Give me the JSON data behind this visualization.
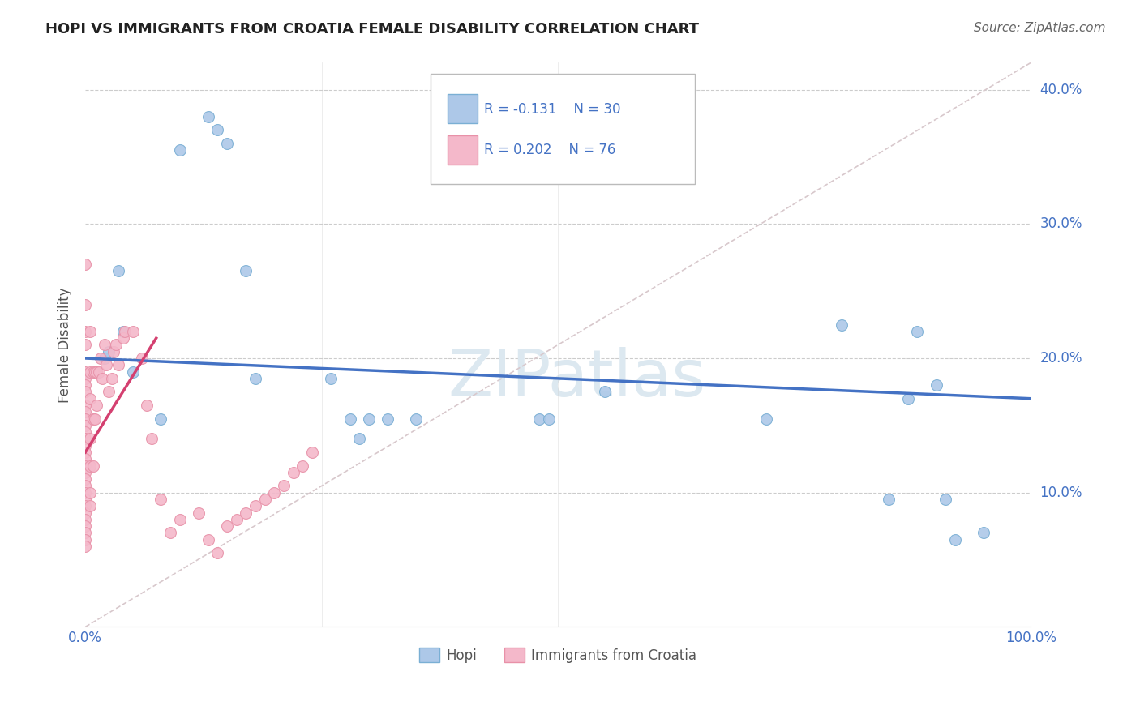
{
  "title": "HOPI VS IMMIGRANTS FROM CROATIA FEMALE DISABILITY CORRELATION CHART",
  "source": "Source: ZipAtlas.com",
  "ylabel": "Female Disability",
  "watermark": "ZIPatlas",
  "hopi_R": -0.131,
  "hopi_N": 30,
  "croatia_R": 0.202,
  "croatia_N": 76,
  "hopi_color": "#adc8e8",
  "hopi_edge_color": "#7aafd4",
  "hopi_line_color": "#4472c4",
  "croatia_color": "#f4b8ca",
  "croatia_edge_color": "#e891a8",
  "croatia_line_color": "#d44070",
  "ref_line_color": "#d8c8cc",
  "xlim": [
    0.0,
    1.0
  ],
  "ylim": [
    0.0,
    0.42
  ],
  "x_ticks": [
    0.0,
    0.25,
    0.5,
    0.75,
    1.0
  ],
  "x_tick_labels": [
    "0.0%",
    "",
    "",
    "",
    "100.0%"
  ],
  "y_ticks": [
    0.1,
    0.2,
    0.3,
    0.4
  ],
  "y_tick_labels": [
    "10.0%",
    "20.0%",
    "30.0%",
    "40.0%"
  ],
  "hopi_x": [
    0.1,
    0.13,
    0.14,
    0.15,
    0.55,
    0.72,
    0.8,
    0.85,
    0.87,
    0.88,
    0.9,
    0.91,
    0.92,
    0.95,
    0.17,
    0.18,
    0.26,
    0.28,
    0.29,
    0.3,
    0.32,
    0.35,
    0.48,
    0.49,
    0.02,
    0.025,
    0.035,
    0.04,
    0.05,
    0.08
  ],
  "hopi_y": [
    0.355,
    0.38,
    0.37,
    0.36,
    0.175,
    0.155,
    0.225,
    0.095,
    0.17,
    0.22,
    0.18,
    0.095,
    0.065,
    0.07,
    0.265,
    0.185,
    0.185,
    0.155,
    0.14,
    0.155,
    0.155,
    0.155,
    0.155,
    0.155,
    0.2,
    0.205,
    0.265,
    0.22,
    0.19,
    0.155
  ],
  "croatia_x": [
    0.0,
    0.0,
    0.0,
    0.0,
    0.0,
    0.0,
    0.0,
    0.0,
    0.0,
    0.0,
    0.0,
    0.0,
    0.0,
    0.0,
    0.0,
    0.0,
    0.0,
    0.0,
    0.0,
    0.0,
    0.0,
    0.0,
    0.0,
    0.0,
    0.0,
    0.0,
    0.0,
    0.0,
    0.0,
    0.0,
    0.005,
    0.005,
    0.005,
    0.005,
    0.005,
    0.005,
    0.005,
    0.008,
    0.008,
    0.008,
    0.01,
    0.01,
    0.012,
    0.012,
    0.014,
    0.016,
    0.018,
    0.02,
    0.022,
    0.025,
    0.028,
    0.03,
    0.032,
    0.035,
    0.04,
    0.042,
    0.05,
    0.06,
    0.065,
    0.07,
    0.08,
    0.09,
    0.1,
    0.12,
    0.13,
    0.14,
    0.15,
    0.16,
    0.17,
    0.18,
    0.19,
    0.2,
    0.21,
    0.22,
    0.23,
    0.24
  ],
  "croatia_y": [
    0.27,
    0.24,
    0.22,
    0.21,
    0.19,
    0.185,
    0.18,
    0.175,
    0.165,
    0.16,
    0.155,
    0.15,
    0.145,
    0.14,
    0.135,
    0.13,
    0.125,
    0.12,
    0.115,
    0.11,
    0.105,
    0.1,
    0.095,
    0.09,
    0.085,
    0.08,
    0.075,
    0.07,
    0.065,
    0.06,
    0.22,
    0.19,
    0.17,
    0.14,
    0.12,
    0.1,
    0.09,
    0.19,
    0.155,
    0.12,
    0.19,
    0.155,
    0.19,
    0.165,
    0.19,
    0.2,
    0.185,
    0.21,
    0.195,
    0.175,
    0.185,
    0.205,
    0.21,
    0.195,
    0.215,
    0.22,
    0.22,
    0.2,
    0.165,
    0.14,
    0.095,
    0.07,
    0.08,
    0.085,
    0.065,
    0.055,
    0.075,
    0.08,
    0.085,
    0.09,
    0.095,
    0.1,
    0.105,
    0.115,
    0.12,
    0.13
  ]
}
